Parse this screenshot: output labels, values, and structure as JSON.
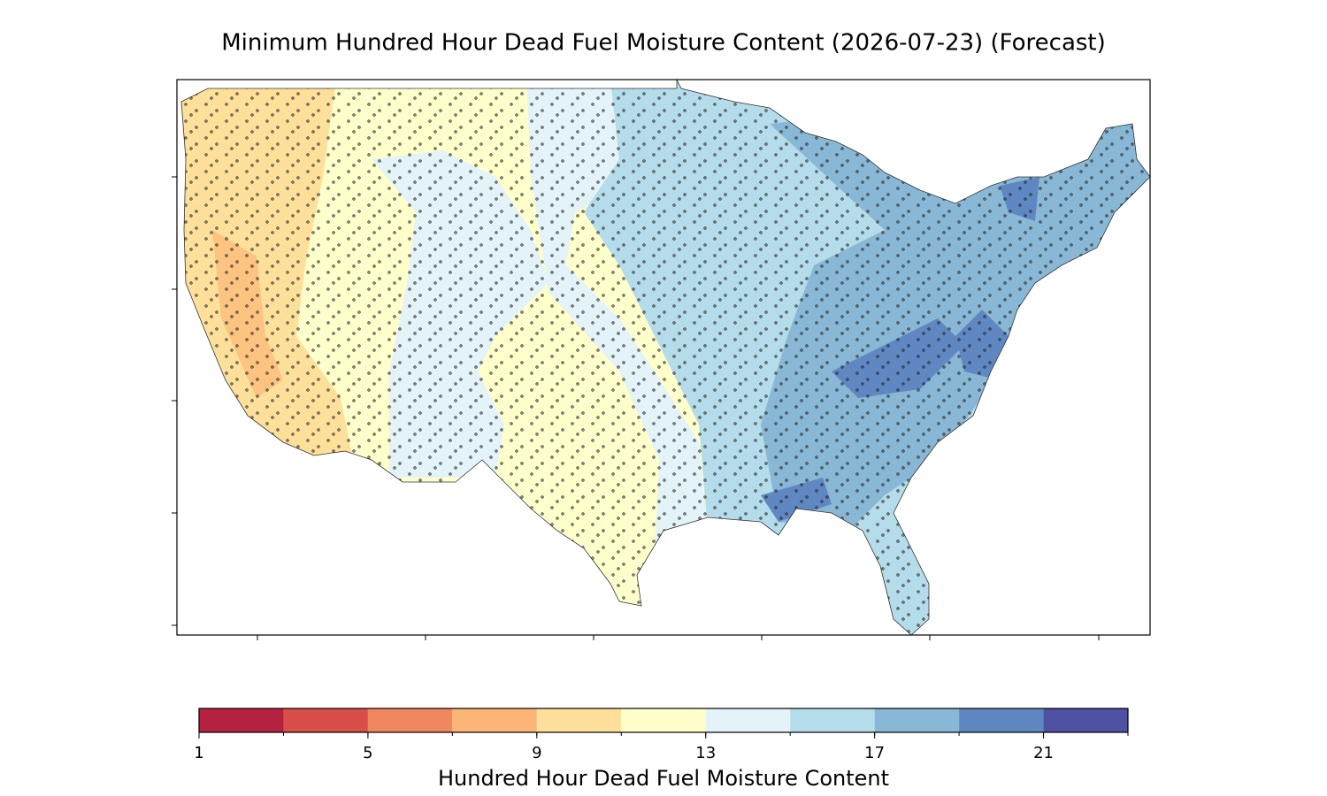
{
  "title": "Minimum Hundred Hour Dead Fuel Moisture Content (2026-07-23) (Forecast)",
  "colorbar": {
    "label": "Hundred Hour Dead Fuel Moisture Content",
    "bins": [
      1,
      3,
      5,
      7,
      9,
      11,
      13,
      15,
      17,
      19,
      21,
      23
    ],
    "colors": [
      "#b5223f",
      "#da4e4a",
      "#f1875f",
      "#fbb676",
      "#fee09a",
      "#ffffcc",
      "#e3f3f8",
      "#b5dcea",
      "#89b8d6",
      "#5f87c2",
      "#4f51a3"
    ],
    "ticks": [
      1,
      5,
      9,
      13,
      17,
      21
    ]
  }
}
